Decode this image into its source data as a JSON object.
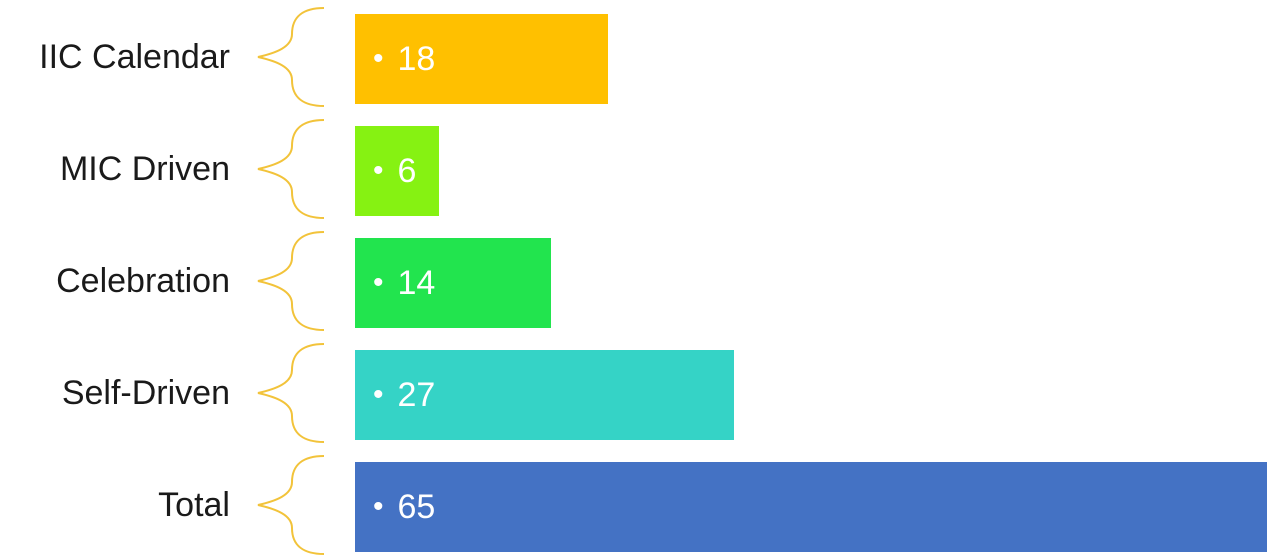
{
  "diagram": {
    "max_scale": 65,
    "items": [
      {
        "label": "IIC Calendar",
        "bullet": "•",
        "value": "18",
        "amount": 18,
        "color": "#FFC000"
      },
      {
        "label": "MIC Driven",
        "bullet": "•",
        "value": "6",
        "amount": 6,
        "color": "#86F212"
      },
      {
        "label": "Celebration",
        "bullet": "•",
        "value": "14",
        "amount": 14,
        "color": "#22E44E"
      },
      {
        "label": "Self-Driven",
        "bullet": "•",
        "value": "27",
        "amount": 27,
        "color": "#35D3C6"
      },
      {
        "label": "Total",
        "bullet": "•",
        "value": "65",
        "amount": 65,
        "color": "#4472C4"
      }
    ],
    "brace_color": "#F2C33A"
  }
}
